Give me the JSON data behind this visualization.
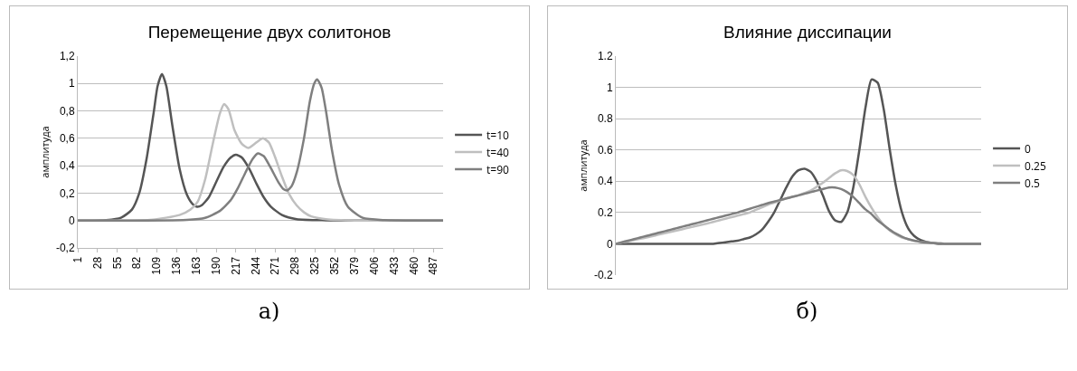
{
  "chart_data": [
    {
      "type": "line",
      "title": "Перемещение двух солитонов",
      "ylabel": "амплитуда",
      "annotations": [
        "а)"
      ],
      "xlim": [
        1,
        500
      ],
      "xticks": [
        1,
        28,
        55,
        82,
        109,
        136,
        163,
        190,
        217,
        244,
        271,
        298,
        325,
        352,
        379,
        406,
        433,
        460,
        487
      ],
      "ylim": [
        -0.2,
        1.2
      ],
      "yticks": [
        {
          "value": -0.2,
          "label": "-0,2"
        },
        0,
        {
          "value": 0.2,
          "label": "0,2"
        },
        {
          "value": 0.4,
          "label": "0,4"
        },
        {
          "value": 0.6,
          "label": "0,6"
        },
        {
          "value": 0.8,
          "label": "0,8"
        },
        1,
        {
          "value": 1.2,
          "label": "1,2"
        }
      ],
      "grid": "y",
      "legend": "right",
      "series": [
        {
          "name": "t=10",
          "color": "#555555",
          "x": [
            1,
            40,
            60,
            75,
            85,
            95,
            105,
            110,
            116,
            122,
            130,
            140,
            150,
            158,
            164,
            170,
            180,
            190,
            200,
            210,
            217,
            225,
            235,
            245,
            255,
            265,
            280,
            300,
            340,
            400,
            500
          ],
          "values": [
            0,
            0.003,
            0.02,
            0.08,
            0.2,
            0.45,
            0.8,
            0.98,
            1.07,
            0.98,
            0.7,
            0.38,
            0.19,
            0.12,
            0.1,
            0.11,
            0.17,
            0.28,
            0.39,
            0.46,
            0.48,
            0.46,
            0.38,
            0.27,
            0.17,
            0.1,
            0.04,
            0.01,
            0.002,
            0,
            0
          ]
        },
        {
          "name": "t=40",
          "color": "#bfbfbf",
          "x": [
            1,
            100,
            140,
            155,
            165,
            175,
            185,
            195,
            201,
            207,
            215,
            225,
            234,
            245,
            254,
            262,
            270,
            280,
            290,
            300,
            310,
            320,
            340,
            380,
            500
          ],
          "values": [
            0,
            0.005,
            0.04,
            0.08,
            0.14,
            0.3,
            0.55,
            0.78,
            0.85,
            0.81,
            0.66,
            0.56,
            0.53,
            0.57,
            0.6,
            0.57,
            0.47,
            0.32,
            0.19,
            0.11,
            0.06,
            0.03,
            0.01,
            0,
            0
          ]
        },
        {
          "name": "t=90",
          "color": "#7f7f7f",
          "x": [
            1,
            150,
            175,
            195,
            210,
            220,
            230,
            240,
            247,
            255,
            265,
            275,
            282,
            287,
            293,
            300,
            310,
            318,
            324,
            328,
            334,
            340,
            348,
            358,
            370,
            390,
            420,
            500
          ],
          "values": [
            0,
            0.005,
            0.02,
            0.07,
            0.15,
            0.24,
            0.35,
            0.45,
            0.49,
            0.47,
            0.38,
            0.28,
            0.23,
            0.22,
            0.25,
            0.35,
            0.6,
            0.87,
            1.0,
            1.03,
            0.97,
            0.8,
            0.52,
            0.26,
            0.1,
            0.02,
            0.003,
            0
          ]
        }
      ]
    },
    {
      "type": "line",
      "title": "Влияние диссипации",
      "ylabel": "амплитуда",
      "annotations": [
        "б)"
      ],
      "categories": [
        null,
        null,
        null,
        null,
        null,
        null,
        null,
        null,
        null,
        null,
        null,
        null,
        null,
        null,
        null,
        null,
        null,
        null,
        null,
        null,
        null,
        null,
        null,
        null,
        null,
        null,
        null,
        null,
        null,
        null,
        null,
        null,
        null,
        null,
        null,
        null,
        null,
        null,
        null,
        null,
        null,
        null,
        null,
        null,
        null,
        null,
        null,
        null,
        null,
        null,
        null,
        null,
        null,
        null,
        null,
        null,
        null,
        null,
        null,
        null,
        null
      ],
      "ylim": [
        -0.2,
        1.2
      ],
      "yticks": [
        -0.2,
        0,
        0.2,
        0.4,
        0.6,
        0.8,
        1,
        1.2
      ],
      "grid": "y",
      "legend": "right",
      "tick_labels": "y",
      "series": [
        {
          "name": "0",
          "color": "#555555",
          "values": [
            0,
            0,
            0,
            0,
            0,
            0,
            0,
            0,
            0,
            0,
            0,
            0,
            0,
            0,
            0,
            0,
            0,
            0.005,
            0.01,
            0.015,
            0.02,
            0.03,
            0.04,
            0.06,
            0.09,
            0.14,
            0.2,
            0.28,
            0.36,
            0.43,
            0.47,
            0.48,
            0.46,
            0.4,
            0.31,
            0.21,
            0.15,
            0.14,
            0.2,
            0.36,
            0.6,
            0.87,
            1.05,
            1.03,
            0.86,
            0.6,
            0.37,
            0.2,
            0.1,
            0.05,
            0.025,
            0.012,
            0.006,
            0,
            0,
            0,
            0,
            0,
            0,
            0,
            0
          ]
        },
        {
          "name": "0.25",
          "color": "#bfbfbf",
          "values": [
            0,
            0.008,
            0.016,
            0.024,
            0.032,
            0.04,
            0.049,
            0.058,
            0.067,
            0.076,
            0.085,
            0.094,
            0.103,
            0.112,
            0.121,
            0.13,
            0.14,
            0.15,
            0.16,
            0.17,
            0.18,
            0.19,
            0.2,
            0.217,
            0.233,
            0.25,
            0.263,
            0.277,
            0.29,
            0.3,
            0.31,
            0.325,
            0.34,
            0.365,
            0.39,
            0.42,
            0.45,
            0.47,
            0.465,
            0.44,
            0.38,
            0.3,
            0.23,
            0.17,
            0.12,
            0.085,
            0.06,
            0.04,
            0.03,
            0.02,
            0.013,
            0.008,
            0.005,
            0.003,
            0,
            0,
            0,
            0,
            0,
            0,
            0
          ]
        },
        {
          "name": "0.5",
          "color": "#7f7f7f",
          "values": [
            0,
            0.01,
            0.02,
            0.03,
            0.04,
            0.05,
            0.06,
            0.07,
            0.08,
            0.09,
            0.1,
            0.11,
            0.12,
            0.13,
            0.14,
            0.15,
            0.16,
            0.17,
            0.18,
            0.19,
            0.2,
            0.212,
            0.224,
            0.236,
            0.248,
            0.26,
            0.27,
            0.28,
            0.29,
            0.3,
            0.31,
            0.32,
            0.33,
            0.34,
            0.35,
            0.36,
            0.36,
            0.35,
            0.33,
            0.3,
            0.26,
            0.22,
            0.19,
            0.15,
            0.12,
            0.09,
            0.065,
            0.045,
            0.03,
            0.02,
            0.013,
            0.008,
            0.005,
            0.003,
            0,
            0,
            0,
            0,
            0,
            0,
            0
          ]
        }
      ]
    }
  ]
}
